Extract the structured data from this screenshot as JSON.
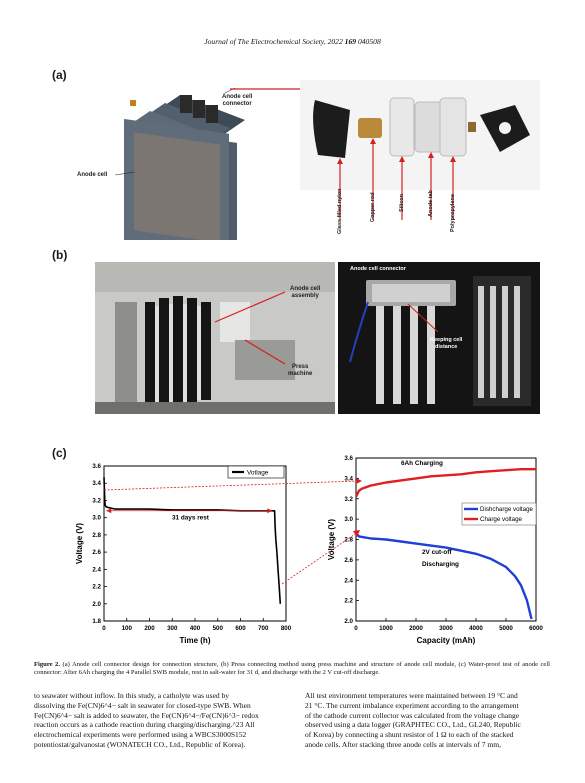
{
  "header": {
    "journal": "Journal of The Electrochemical Society",
    "year": "2022",
    "volume": "169",
    "article": "040508"
  },
  "panel_a": {
    "label": "(a)",
    "anode_cell": "Anode cell",
    "anode_cell_connector": [
      "Anode cell",
      "connector"
    ],
    "parts": [
      "Glass filled nylon",
      "Copper rod",
      "Silicon",
      "Anode tab",
      "Polypropylene"
    ]
  },
  "panel_b": {
    "label": "(b)",
    "anode_cell_assembly": [
      "Anode cell",
      "assembly"
    ],
    "press_machine": [
      "Press",
      "machine"
    ],
    "anode_cell_connector": "Anode cell connector",
    "keeping_cell_distance": [
      "Keeping cell",
      "distance"
    ]
  },
  "panel_c": {
    "label": "(c)"
  },
  "chart_data": [
    {
      "type": "line",
      "xlabel": "Time (h)",
      "ylabel": "Voltage (V)",
      "xlim": [
        0,
        800
      ],
      "ylim": [
        1.8,
        3.6
      ],
      "xticks": [
        "0",
        "100",
        "200",
        "300",
        "400",
        "500",
        "600",
        "700",
        "800"
      ],
      "yticks": [
        "1.8",
        "2.0",
        "2.2",
        "2.4",
        "2.6",
        "2.8",
        "3.0",
        "3.2",
        "3.4",
        "3.6"
      ],
      "legend": "top-right",
      "annotation": "31 days rest",
      "series": [
        {
          "name": "Votlage",
          "color": "#000000",
          "x": [
            0,
            1,
            2,
            3,
            5,
            8,
            15,
            50,
            100,
            200,
            300,
            400,
            500,
            600,
            700,
            740,
            750,
            752,
            755,
            760,
            765,
            770,
            775
          ],
          "y": [
            3.47,
            3.4,
            3.3,
            3.22,
            3.15,
            3.13,
            3.12,
            3.1,
            3.1,
            3.1,
            3.09,
            3.09,
            3.09,
            3.08,
            3.08,
            3.08,
            3.08,
            2.9,
            2.75,
            2.6,
            2.4,
            2.2,
            2.0
          ]
        }
      ]
    },
    {
      "type": "line",
      "xlabel": "Capacity (mAh)",
      "ylabel": "Voltage (V)",
      "xlim": [
        0,
        6000
      ],
      "ylim": [
        2.0,
        3.6
      ],
      "xticks": [
        "0",
        "1000",
        "2000",
        "3000",
        "4000",
        "5000",
        "6000"
      ],
      "yticks": [
        "2.0",
        "2.2",
        "2.4",
        "2.6",
        "2.8",
        "3.0",
        "3.2",
        "3.4",
        "3.6"
      ],
      "legend": "right",
      "annotations": [
        "6Ah Charging",
        "2V cut-off",
        "Discharging"
      ],
      "series": [
        {
          "name": "Dishcharge voltage",
          "color": "#1f3fd6",
          "x": [
            0,
            100,
            500,
            1000,
            1500,
            2000,
            2500,
            3000,
            3500,
            4000,
            4500,
            5000,
            5300,
            5500,
            5700,
            5850
          ],
          "y": [
            2.86,
            2.83,
            2.81,
            2.8,
            2.78,
            2.76,
            2.74,
            2.72,
            2.69,
            2.66,
            2.61,
            2.53,
            2.44,
            2.35,
            2.2,
            2.02
          ]
        },
        {
          "name": "Charge voltage",
          "color": "#e02020",
          "x": [
            0,
            100,
            200,
            500,
            1000,
            1500,
            2000,
            2500,
            3000,
            3500,
            4000,
            4500,
            5000,
            5500,
            5800,
            6000
          ],
          "y": [
            3.22,
            3.28,
            3.3,
            3.33,
            3.36,
            3.38,
            3.4,
            3.42,
            3.43,
            3.44,
            3.46,
            3.47,
            3.48,
            3.49,
            3.49,
            3.49
          ]
        }
      ]
    }
  ],
  "caption": {
    "label": "Figure 2.",
    "text": "(a) Anode cell connector design for connection structure, (b) Press connecting method using press machine and structure of anode cell module, (c) Water-proof test of anode cell connector: After 6Ah charging the 4 Parallel SWB module, rest in salt-water for 31 d, and discharge with the 2 V cut-off discharge."
  },
  "body": {
    "left": [
      "to seawater without inflow. In this study, a catholyte was used by",
      "dissolving the Fe(CN)6^4− salt in seawater for closed-type SWB. When",
      "Fe(CN)6^4− salt is added to seawater, the Fe(CN)6^4−/Fe(CN)6^3− redox",
      "reaction occurs as a cathode reaction during charging/discharging.^23 All",
      "electrochemical experiments were performed using a WBCS3000S152",
      "potentiostat/galvanostat (WONATECH CO., Ltd., Republic of Korea)."
    ],
    "right": [
      "All test environment temperatures were maintained between 19 °C and",
      "21 °C. The current imbalance experiment according to the arrangement",
      "of the cathode current collector was calculated from the voltage change",
      "observed using a data logger (GRAPHTEC CO., Ltd., GL240, Republic",
      "of Korea) by connecting a shunt resistor of 1 Ω to each of the stacked",
      "anode cells. After stacking three anode cells at intervals of 7 mm,"
    ]
  },
  "colors": {
    "arrow_red": "#d42020",
    "discharge_blue": "#1f3fd6",
    "charge_red": "#e02020"
  }
}
